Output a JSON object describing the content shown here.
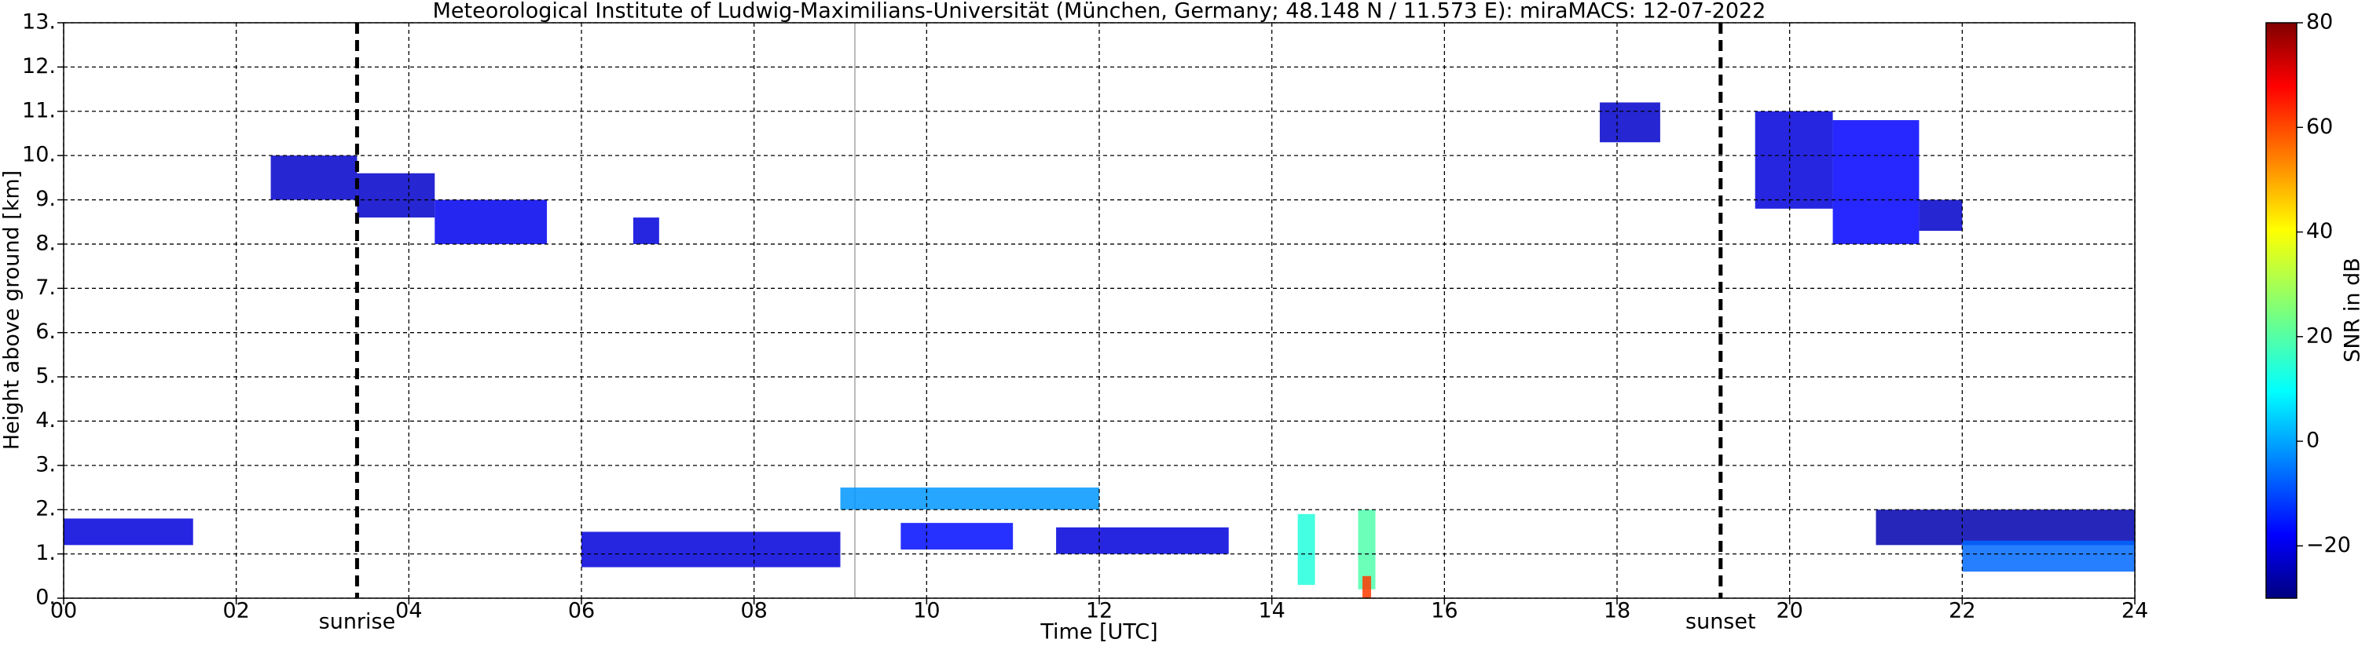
{
  "chart_data": {
    "type": "radar",
    "title": "Meteorological Institute of Ludwig-Maximilians-Universität (München, Germany; 48.148 N / 11.573 E):    miraMACS: 12-07-2022",
    "xlabel": "Time [UTC]",
    "ylabel": "Height above ground [km]",
    "colorbar_label": "SNR in dB",
    "xlim": [
      0,
      24
    ],
    "xticks": [
      {
        "value": 0,
        "label": "00"
      },
      {
        "value": 2,
        "label": "02"
      },
      {
        "value": 4,
        "label": "04"
      },
      {
        "value": 6,
        "label": "06"
      },
      {
        "value": 8,
        "label": "08"
      },
      10,
      12,
      14,
      16,
      18,
      20,
      22,
      24
    ],
    "ylim": [
      0,
      13
    ],
    "yticks": [
      {
        "value": 0,
        "label": "0."
      },
      {
        "value": 1,
        "label": "1."
      },
      {
        "value": 2,
        "label": "2."
      },
      {
        "value": 3,
        "label": "3."
      },
      {
        "value": 4,
        "label": "4."
      },
      {
        "value": 5,
        "label": "5."
      },
      {
        "value": 6,
        "label": "6."
      },
      {
        "value": 7,
        "label": "7."
      },
      {
        "value": 8,
        "label": "8."
      },
      {
        "value": 9,
        "label": "9."
      },
      {
        "value": 10,
        "label": "10."
      },
      {
        "value": 11,
        "label": "11."
      },
      {
        "value": 12,
        "label": "12."
      },
      {
        "value": 13,
        "label": "13."
      }
    ],
    "clim": [
      -30,
      80
    ],
    "cticks": [
      {
        "value": -20,
        "label": "−20"
      },
      0,
      20,
      40,
      60,
      80
    ],
    "grid": true,
    "markers": [
      {
        "label": "sunrise",
        "x": 3.4
      },
      {
        "label": "sunset",
        "x": 19.2
      }
    ],
    "echoes": [
      {
        "x": [
          2.4,
          3.4
        ],
        "y": [
          9.0,
          10.0
        ],
        "snr": -22
      },
      {
        "x": [
          3.4,
          4.3
        ],
        "y": [
          8.6,
          9.6
        ],
        "snr": -22
      },
      {
        "x": [
          4.3,
          5.6
        ],
        "y": [
          8.0,
          9.0
        ],
        "snr": -18
      },
      {
        "x": [
          6.6,
          6.9
        ],
        "y": [
          8.0,
          8.6
        ],
        "snr": -20
      },
      {
        "x": [
          17.8,
          18.5
        ],
        "y": [
          10.3,
          11.2
        ],
        "snr": -22
      },
      {
        "x": [
          19.6,
          20.5
        ],
        "y": [
          8.8,
          11.0
        ],
        "snr": -20
      },
      {
        "x": [
          20.5,
          21.5
        ],
        "y": [
          8.0,
          10.8
        ],
        "snr": -16
      },
      {
        "x": [
          21.5,
          22.0
        ],
        "y": [
          8.3,
          9.0
        ],
        "snr": -22
      },
      {
        "x": [
          0.0,
          1.5
        ],
        "y": [
          1.2,
          1.8
        ],
        "snr": -20
      },
      {
        "x": [
          6.0,
          9.0
        ],
        "y": [
          0.7,
          1.5
        ],
        "snr": -20
      },
      {
        "x": [
          9.7,
          11.0
        ],
        "y": [
          1.1,
          1.7
        ],
        "snr": -15
      },
      {
        "x": [
          11.5,
          13.5
        ],
        "y": [
          1.0,
          1.6
        ],
        "snr": -20
      },
      {
        "x": [
          9.0,
          12.0
        ],
        "y": [
          2.0,
          2.5
        ],
        "snr": 0
      },
      {
        "x": [
          14.3,
          14.5
        ],
        "y": [
          0.3,
          1.9
        ],
        "snr": 15
      },
      {
        "x": [
          15.0,
          15.2
        ],
        "y": [
          0.2,
          2.0
        ],
        "snr": 20
      },
      {
        "x": [
          15.05,
          15.15
        ],
        "y": [
          0.0,
          0.5
        ],
        "snr": 60
      },
      {
        "x": [
          21.0,
          24.0
        ],
        "y": [
          1.2,
          2.0
        ],
        "snr": -25
      },
      {
        "x": [
          22.0,
          24.0
        ],
        "y": [
          0.6,
          1.3
        ],
        "snr": -5
      }
    ]
  }
}
